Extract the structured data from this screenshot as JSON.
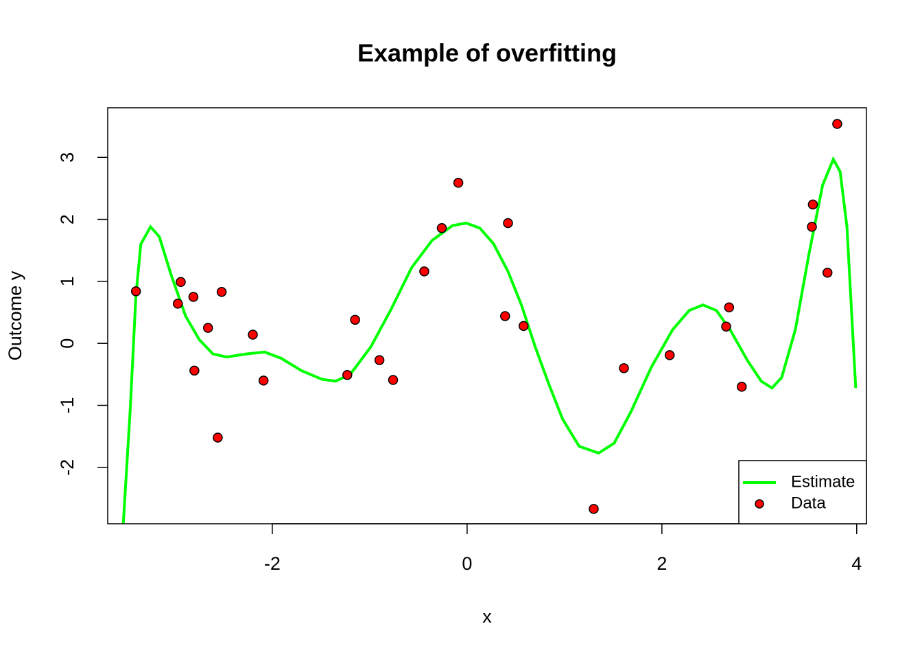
{
  "chart_data": {
    "type": "scatter",
    "title": "Example of overfitting",
    "xlabel": "x",
    "ylabel": "Outcome y",
    "xlim": [
      -3.69,
      4.1
    ],
    "ylim": [
      -2.91,
      3.8
    ],
    "xticks": [
      -2,
      0,
      2,
      4
    ],
    "yticks": [
      -2,
      -1,
      0,
      1,
      2,
      3
    ],
    "legend": "bottom right",
    "series": [
      {
        "name": "Estimate",
        "color": "#00ff00",
        "type": "line",
        "x": [
          -3.53,
          -3.46,
          -3.4,
          -3.35,
          -3.25,
          -3.16,
          -3.04,
          -2.89,
          -2.75,
          -2.61,
          -2.47,
          -2.26,
          -2.08,
          -1.91,
          -1.7,
          -1.49,
          -1.35,
          -1.2,
          -0.99,
          -0.78,
          -0.57,
          -0.36,
          -0.15,
          -0.01,
          0.13,
          0.27,
          0.42,
          0.56,
          0.7,
          0.84,
          0.98,
          1.15,
          1.35,
          1.51,
          1.68,
          1.89,
          2.11,
          2.28,
          2.42,
          2.56,
          2.7,
          2.88,
          3.02,
          3.13,
          3.23,
          3.37,
          3.51,
          3.65,
          3.76,
          3.83,
          3.9,
          3.99
        ],
        "values": [
          -2.91,
          -1.1,
          0.78,
          1.6,
          1.88,
          1.72,
          1.11,
          0.44,
          0.06,
          -0.17,
          -0.22,
          -0.17,
          -0.14,
          -0.24,
          -0.44,
          -0.58,
          -0.61,
          -0.5,
          -0.06,
          0.55,
          1.22,
          1.66,
          1.9,
          1.94,
          1.86,
          1.61,
          1.16,
          0.61,
          -0.06,
          -0.66,
          -1.22,
          -1.66,
          -1.77,
          -1.61,
          -1.11,
          -0.39,
          0.22,
          0.53,
          0.62,
          0.53,
          0.22,
          -0.28,
          -0.61,
          -0.72,
          -0.55,
          0.22,
          1.44,
          2.55,
          2.97,
          2.77,
          1.88,
          -0.72
        ]
      },
      {
        "name": "Data",
        "color": "#ff0000",
        "type": "scatter",
        "x": [
          -3.4,
          -2.97,
          -2.94,
          -2.81,
          -2.8,
          -2.66,
          -2.56,
          -2.52,
          -2.2,
          -2.09,
          -1.23,
          -1.15,
          -0.9,
          -0.76,
          -0.44,
          -0.26,
          -0.09,
          0.39,
          0.42,
          0.58,
          1.3,
          1.61,
          2.08,
          2.66,
          2.69,
          2.82,
          3.54,
          3.55,
          3.7,
          3.8
        ],
        "values": [
          0.84,
          0.64,
          0.99,
          0.75,
          -0.44,
          0.25,
          -1.52,
          0.83,
          0.14,
          -0.6,
          -0.51,
          0.38,
          -0.27,
          -0.59,
          1.16,
          1.86,
          2.59,
          0.44,
          1.94,
          0.28,
          -2.67,
          -0.4,
          -0.19,
          0.27,
          0.58,
          -0.7,
          1.88,
          2.24,
          1.14,
          3.54
        ]
      }
    ]
  }
}
